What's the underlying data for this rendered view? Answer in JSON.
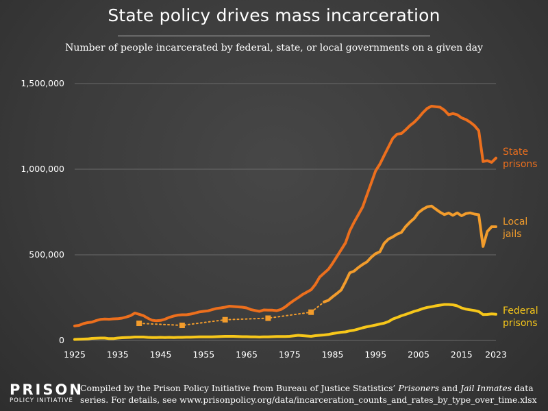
{
  "title": "State policy drives mass incarceration",
  "subtitle": "Number of people incarcerated by federal, state, or local governments on a given day",
  "logo": {
    "line1": "PRISON",
    "line2": "POLICY INITIATIVE"
  },
  "credit": {
    "part1": "Compiled by the Prison Policy Initiative from Bureau of Justice Statistics’ ",
    "italic1": "Prisoners",
    "part2": " and ",
    "italic2": "Jail Inmates",
    "part3": " data series. For details, see www.prisonpolicy.org/data/incarceration_counts_and_rates_by_type_over_time.xlsx"
  },
  "chart_data": {
    "type": "line",
    "xlim": [
      1925,
      2023
    ],
    "ylim": [
      0,
      1500000
    ],
    "xticks": [
      1925,
      1935,
      1945,
      1955,
      1965,
      1975,
      1985,
      1995,
      2005,
      2015,
      2023
    ],
    "yticks": [
      0,
      500000,
      1000000,
      1500000
    ],
    "ytick_labels": [
      "0",
      "500,000",
      "1,000,000",
      "1,500,000"
    ],
    "grid": "horizontal",
    "series": [
      {
        "name": "State prisons",
        "label_lines": [
          "State",
          "prisons"
        ],
        "color": "#ec6f1d",
        "points": [
          [
            1925,
            85000
          ],
          [
            1926,
            88000
          ],
          [
            1927,
            98000
          ],
          [
            1928,
            104000
          ],
          [
            1929,
            107000
          ],
          [
            1930,
            116000
          ],
          [
            1931,
            123000
          ],
          [
            1932,
            125000
          ],
          [
            1933,
            124000
          ],
          [
            1934,
            126000
          ],
          [
            1935,
            127000
          ],
          [
            1936,
            130000
          ],
          [
            1937,
            137000
          ],
          [
            1938,
            145000
          ],
          [
            1939,
            160000
          ],
          [
            1940,
            153000
          ],
          [
            1941,
            145000
          ],
          [
            1942,
            130000
          ],
          [
            1943,
            118000
          ],
          [
            1944,
            115000
          ],
          [
            1945,
            117000
          ],
          [
            1946,
            124000
          ],
          [
            1947,
            135000
          ],
          [
            1948,
            142000
          ],
          [
            1949,
            148000
          ],
          [
            1950,
            150000
          ],
          [
            1951,
            150000
          ],
          [
            1952,
            154000
          ],
          [
            1953,
            160000
          ],
          [
            1954,
            167000
          ],
          [
            1955,
            170000
          ],
          [
            1956,
            173000
          ],
          [
            1957,
            180000
          ],
          [
            1958,
            187000
          ],
          [
            1959,
            190000
          ],
          [
            1960,
            194000
          ],
          [
            1961,
            200000
          ],
          [
            1962,
            198000
          ],
          [
            1963,
            196000
          ],
          [
            1964,
            194000
          ],
          [
            1965,
            190000
          ],
          [
            1966,
            180000
          ],
          [
            1967,
            175000
          ],
          [
            1968,
            170000
          ],
          [
            1969,
            178000
          ],
          [
            1970,
            177000
          ],
          [
            1971,
            177000
          ],
          [
            1972,
            174000
          ],
          [
            1973,
            181000
          ],
          [
            1974,
            196000
          ],
          [
            1975,
            216000
          ],
          [
            1976,
            234000
          ],
          [
            1977,
            250000
          ],
          [
            1978,
            268000
          ],
          [
            1979,
            282000
          ],
          [
            1980,
            296000
          ],
          [
            1981,
            327000
          ],
          [
            1982,
            370000
          ],
          [
            1983,
            393000
          ],
          [
            1984,
            415000
          ],
          [
            1985,
            450000
          ],
          [
            1986,
            490000
          ],
          [
            1987,
            530000
          ],
          [
            1988,
            570000
          ],
          [
            1989,
            640000
          ],
          [
            1990,
            690000
          ],
          [
            1991,
            735000
          ],
          [
            1992,
            780000
          ],
          [
            1993,
            850000
          ],
          [
            1994,
            920000
          ],
          [
            1995,
            990000
          ],
          [
            1996,
            1030000
          ],
          [
            1997,
            1080000
          ],
          [
            1998,
            1130000
          ],
          [
            1999,
            1180000
          ],
          [
            2000,
            1205000
          ],
          [
            2001,
            1208000
          ],
          [
            2002,
            1230000
          ],
          [
            2003,
            1255000
          ],
          [
            2004,
            1275000
          ],
          [
            2005,
            1300000
          ],
          [
            2006,
            1330000
          ],
          [
            2007,
            1355000
          ],
          [
            2008,
            1368000
          ],
          [
            2009,
            1365000
          ],
          [
            2010,
            1362000
          ],
          [
            2011,
            1345000
          ],
          [
            2012,
            1318000
          ],
          [
            2013,
            1325000
          ],
          [
            2014,
            1318000
          ],
          [
            2015,
            1300000
          ],
          [
            2016,
            1290000
          ],
          [
            2017,
            1275000
          ],
          [
            2018,
            1255000
          ],
          [
            2019,
            1225000
          ],
          [
            2020,
            1045000
          ],
          [
            2021,
            1050000
          ],
          [
            2022,
            1040000
          ],
          [
            2023,
            1065000
          ]
        ]
      },
      {
        "name": "Local jails",
        "label_lines": [
          "Local",
          "jails"
        ],
        "color": "#f29c2c",
        "dotted_points": [
          [
            1940,
            100000
          ],
          [
            1950,
            88000
          ],
          [
            1960,
            121000
          ],
          [
            1970,
            130000
          ],
          [
            1980,
            165000
          ],
          [
            1983,
            225000
          ]
        ],
        "marker_points": [
          [
            1940,
            100000
          ],
          [
            1950,
            88000
          ],
          [
            1960,
            121000
          ],
          [
            1970,
            130000
          ],
          [
            1980,
            165000
          ]
        ],
        "points": [
          [
            1983,
            225000
          ],
          [
            1984,
            234000
          ],
          [
            1985,
            255000
          ],
          [
            1986,
            274000
          ],
          [
            1987,
            295000
          ],
          [
            1988,
            343000
          ],
          [
            1989,
            395000
          ],
          [
            1990,
            405000
          ],
          [
            1991,
            426000
          ],
          [
            1992,
            444000
          ],
          [
            1993,
            459000
          ],
          [
            1994,
            486000
          ],
          [
            1995,
            507000
          ],
          [
            1996,
            518000
          ],
          [
            1997,
            567000
          ],
          [
            1998,
            592000
          ],
          [
            1999,
            605000
          ],
          [
            2000,
            621000
          ],
          [
            2001,
            631000
          ],
          [
            2002,
            665000
          ],
          [
            2003,
            691000
          ],
          [
            2004,
            713000
          ],
          [
            2005,
            747000
          ],
          [
            2006,
            766000
          ],
          [
            2007,
            780000
          ],
          [
            2008,
            785000
          ],
          [
            2009,
            767000
          ],
          [
            2010,
            749000
          ],
          [
            2011,
            735000
          ],
          [
            2012,
            744000
          ],
          [
            2013,
            731000
          ],
          [
            2014,
            745000
          ],
          [
            2015,
            728000
          ],
          [
            2016,
            741000
          ],
          [
            2017,
            745000
          ],
          [
            2018,
            738000
          ],
          [
            2019,
            734000
          ],
          [
            2020,
            549000
          ],
          [
            2021,
            636000
          ],
          [
            2022,
            664000
          ],
          [
            2023,
            664000
          ]
        ]
      },
      {
        "name": "Federal prisons",
        "label_lines": [
          "Federal",
          "prisons"
        ],
        "color": "#f7c71a",
        "points": [
          [
            1925,
            6000
          ],
          [
            1926,
            7000
          ],
          [
            1927,
            8000
          ],
          [
            1928,
            9000
          ],
          [
            1929,
            12000
          ],
          [
            1930,
            13000
          ],
          [
            1931,
            14000
          ],
          [
            1932,
            14000
          ],
          [
            1933,
            11000
          ],
          [
            1934,
            11000
          ],
          [
            1935,
            14000
          ],
          [
            1936,
            16000
          ],
          [
            1937,
            17000
          ],
          [
            1938,
            18000
          ],
          [
            1939,
            20000
          ],
          [
            1940,
            20000
          ],
          [
            1941,
            20000
          ],
          [
            1942,
            18000
          ],
          [
            1943,
            17000
          ],
          [
            1944,
            17000
          ],
          [
            1945,
            18000
          ],
          [
            1946,
            17000
          ],
          [
            1947,
            18000
          ],
          [
            1948,
            17000
          ],
          [
            1949,
            18000
          ],
          [
            1950,
            18000
          ],
          [
            1951,
            19000
          ],
          [
            1952,
            19000
          ],
          [
            1953,
            20000
          ],
          [
            1954,
            21000
          ],
          [
            1955,
            21000
          ],
          [
            1956,
            21000
          ],
          [
            1957,
            21000
          ],
          [
            1958,
            22000
          ],
          [
            1959,
            23000
          ],
          [
            1960,
            24000
          ],
          [
            1961,
            24000
          ],
          [
            1962,
            24000
          ],
          [
            1963,
            23000
          ],
          [
            1964,
            22000
          ],
          [
            1965,
            22000
          ],
          [
            1966,
            21000
          ],
          [
            1967,
            21000
          ],
          [
            1968,
            20000
          ],
          [
            1969,
            21000
          ],
          [
            1970,
            21000
          ],
          [
            1971,
            22000
          ],
          [
            1972,
            23000
          ],
          [
            1973,
            23000
          ],
          [
            1974,
            23000
          ],
          [
            1975,
            24000
          ],
          [
            1976,
            27000
          ],
          [
            1977,
            30000
          ],
          [
            1978,
            28000
          ],
          [
            1979,
            26000
          ],
          [
            1980,
            24000
          ],
          [
            1981,
            28000
          ],
          [
            1982,
            30000
          ],
          [
            1983,
            32000
          ],
          [
            1984,
            35000
          ],
          [
            1985,
            40000
          ],
          [
            1986,
            44000
          ],
          [
            1987,
            48000
          ],
          [
            1988,
            50000
          ],
          [
            1989,
            56000
          ],
          [
            1990,
            60000
          ],
          [
            1991,
            67000
          ],
          [
            1992,
            74000
          ],
          [
            1993,
            80000
          ],
          [
            1994,
            85000
          ],
          [
            1995,
            90000
          ],
          [
            1996,
            96000
          ],
          [
            1997,
            101000
          ],
          [
            1998,
            110000
          ],
          [
            1999,
            125000
          ],
          [
            2000,
            134000
          ],
          [
            2001,
            144000
          ],
          [
            2002,
            152000
          ],
          [
            2003,
            161000
          ],
          [
            2004,
            170000
          ],
          [
            2005,
            177000
          ],
          [
            2006,
            186000
          ],
          [
            2007,
            193000
          ],
          [
            2008,
            197000
          ],
          [
            2009,
            202000
          ],
          [
            2010,
            206000
          ],
          [
            2011,
            210000
          ],
          [
            2012,
            210000
          ],
          [
            2013,
            208000
          ],
          [
            2014,
            202000
          ],
          [
            2015,
            190000
          ],
          [
            2016,
            183000
          ],
          [
            2017,
            179000
          ],
          [
            2018,
            175000
          ],
          [
            2019,
            169000
          ],
          [
            2020,
            151000
          ],
          [
            2021,
            152000
          ],
          [
            2022,
            155000
          ],
          [
            2023,
            153000
          ]
        ]
      }
    ]
  }
}
